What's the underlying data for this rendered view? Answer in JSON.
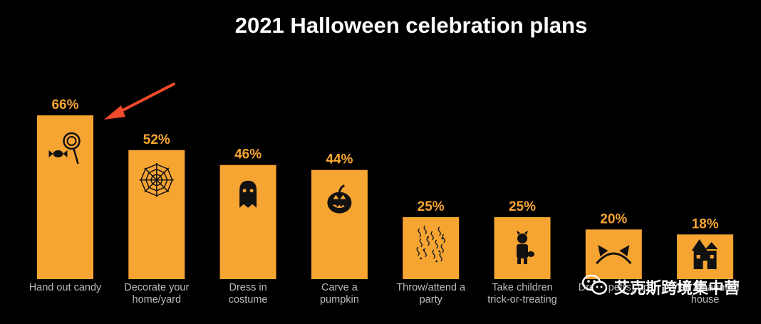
{
  "chart_data": {
    "type": "bar",
    "title": "2021 Halloween celebration plans",
    "categories": [
      "Hand out candy",
      "Decorate your home/yard",
      "Dress in costume",
      "Carve a pumpkin",
      "Throw/attend a party",
      "Take children trick-or-treating",
      "Dress pet(s) up",
      "Visit a haunted house"
    ],
    "values": [
      66,
      52,
      46,
      44,
      25,
      25,
      20,
      18
    ],
    "value_labels": [
      "66%",
      "52%",
      "46%",
      "44%",
      "25%",
      "25%",
      "20%",
      "18%"
    ],
    "icons": [
      "candy-icon",
      "spiderweb-icon",
      "ghost-icon",
      "jack-o-lantern-icon",
      "confetti-icon",
      "child-costume-icon",
      "cat-ears-icon",
      "haunted-house-icon"
    ],
    "unit": "%",
    "ylim": [
      0,
      66
    ],
    "grid": false,
    "colors": {
      "background": "#000000",
      "bar": "#f7a532",
      "text": "#ffffff",
      "label": "#bbbbbb",
      "arrow": "#f04a2b"
    }
  },
  "watermark": {
    "text": "艾克斯跨境集中营"
  }
}
